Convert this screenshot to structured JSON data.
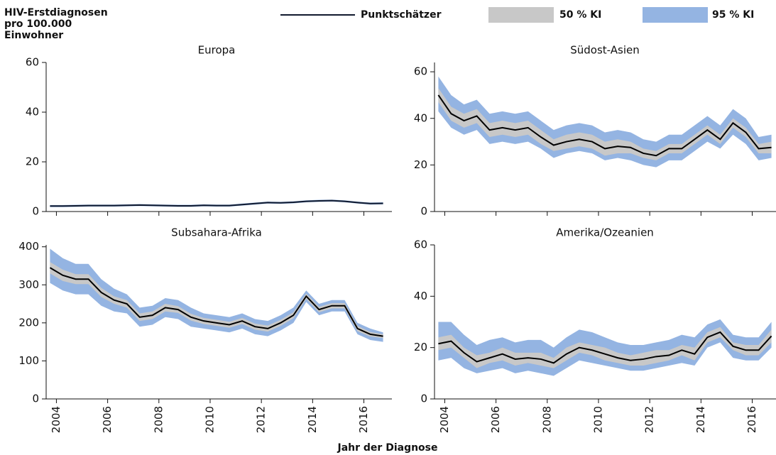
{
  "y_axis_label": [
    "HIV-Erstdiagnosen",
    "pro 100.000",
    "Einwohner"
  ],
  "x_axis_label": "Jahr der Diagnose",
  "chart_data": [
    {
      "type": "line",
      "title": "Europa",
      "x": [
        2003.75,
        2004.25,
        2004.75,
        2005.25,
        2005.75,
        2006.25,
        2006.75,
        2007.25,
        2007.75,
        2008.25,
        2008.75,
        2009.25,
        2009.75,
        2010.25,
        2010.75,
        2011.25,
        2011.75,
        2012.25,
        2012.75,
        2013.25,
        2013.75,
        2014.25,
        2014.75,
        2015.25,
        2015.75,
        2016.25,
        2016.75
      ],
      "xlim": [
        2003.6,
        2016.9
      ],
      "xticks": [
        2004,
        2006,
        2008,
        2010,
        2012,
        2014,
        2016
      ],
      "ylim": [
        0,
        60
      ],
      "yticks": [
        0,
        20,
        40,
        60
      ],
      "series": [
        {
          "name": "Punktschätzer",
          "color": "#111a2e",
          "values": [
            2.2,
            2.2,
            2.3,
            2.4,
            2.4,
            2.4,
            2.5,
            2.6,
            2.5,
            2.4,
            2.3,
            2.3,
            2.5,
            2.4,
            2.4,
            2.8,
            3.2,
            3.6,
            3.5,
            3.7,
            4.1,
            4.3,
            4.4,
            4.1,
            3.6,
            3.2,
            3.3
          ]
        },
        {
          "name": "50 % KI",
          "color": "#c8c8c8",
          "lower": [
            2.0,
            2.0,
            2.1,
            2.2,
            2.2,
            2.2,
            2.3,
            2.4,
            2.3,
            2.2,
            2.1,
            2.1,
            2.3,
            2.2,
            2.2,
            2.6,
            3.0,
            3.4,
            3.3,
            3.5,
            3.9,
            4.1,
            4.2,
            3.9,
            3.4,
            3.0,
            3.1
          ],
          "upper": [
            2.4,
            2.4,
            2.5,
            2.6,
            2.6,
            2.6,
            2.7,
            2.8,
            2.7,
            2.6,
            2.5,
            2.5,
            2.7,
            2.6,
            2.6,
            3.0,
            3.4,
            3.8,
            3.7,
            3.9,
            4.3,
            4.5,
            4.6,
            4.3,
            3.8,
            3.4,
            3.5
          ]
        },
        {
          "name": "95 % KI",
          "color": "#94b4e2",
          "lower": [
            1.8,
            1.8,
            1.9,
            2.0,
            2.0,
            2.0,
            2.1,
            2.2,
            2.1,
            2.0,
            1.9,
            1.9,
            2.1,
            2.0,
            2.0,
            2.4,
            2.8,
            3.2,
            3.1,
            3.3,
            3.7,
            3.9,
            4.0,
            3.7,
            3.2,
            2.8,
            2.9
          ],
          "upper": [
            2.6,
            2.6,
            2.7,
            2.8,
            2.8,
            2.8,
            2.9,
            3.0,
            2.9,
            2.8,
            2.7,
            2.7,
            2.9,
            2.8,
            2.8,
            3.2,
            3.6,
            4.0,
            3.9,
            4.1,
            4.5,
            4.7,
            4.8,
            4.5,
            4.0,
            3.6,
            3.7
          ]
        }
      ]
    },
    {
      "type": "line",
      "title": "Südost-Asien",
      "x": [
        2003.75,
        2004.25,
        2004.75,
        2005.25,
        2005.75,
        2006.25,
        2006.75,
        2007.25,
        2007.75,
        2008.25,
        2008.75,
        2009.25,
        2009.75,
        2010.25,
        2010.75,
        2011.25,
        2011.75,
        2012.25,
        2012.75,
        2013.25,
        2013.75,
        2014.25,
        2014.75,
        2015.25,
        2015.75,
        2016.25,
        2016.75
      ],
      "xlim": [
        2003.6,
        2016.9
      ],
      "xticks": [
        2004,
        2006,
        2008,
        2010,
        2012,
        2014,
        2016
      ],
      "ylim": [
        0,
        64
      ],
      "yticks": [
        0,
        20,
        40,
        60
      ],
      "series": [
        {
          "name": "Punktschätzer",
          "color": "#000000",
          "values": [
            50,
            42,
            39,
            41,
            35,
            36,
            35,
            36,
            32,
            28.5,
            30,
            31,
            30,
            27,
            28,
            27.5,
            25,
            24,
            27,
            27,
            31,
            35,
            31,
            38,
            34,
            27,
            27.5
          ]
        },
        {
          "name": "50 % KI",
          "color": "#c8c8c8",
          "lower": [
            47,
            39,
            36,
            38,
            32,
            33,
            32,
            33,
            29,
            26,
            27,
            28,
            27,
            24,
            25,
            25,
            23,
            22,
            25,
            25,
            29,
            33,
            29,
            36,
            32,
            25,
            25
          ],
          "upper": [
            53,
            45,
            42,
            44,
            38,
            39,
            38,
            39,
            35,
            31,
            33,
            34,
            33,
            30,
            31,
            30,
            27,
            26,
            29,
            29,
            33,
            37,
            33,
            40,
            36,
            29,
            30
          ]
        },
        {
          "name": "95 % KI",
          "color": "#94b4e2",
          "lower": [
            43,
            36,
            33,
            35,
            29,
            30,
            29,
            30,
            27,
            23,
            25,
            26,
            25,
            22,
            23,
            22,
            20,
            19,
            22,
            22,
            26,
            30,
            27,
            33,
            29,
            22,
            23
          ],
          "upper": [
            58,
            50,
            46,
            48,
            42,
            43,
            42,
            43,
            39,
            35,
            37,
            38,
            37,
            34,
            35,
            34,
            31,
            30,
            33,
            33,
            37,
            41,
            37,
            44,
            40,
            32,
            33
          ]
        }
      ]
    },
    {
      "type": "line",
      "title": "Subsahara-Afrika",
      "x": [
        2003.75,
        2004.25,
        2004.75,
        2005.25,
        2005.75,
        2006.25,
        2006.75,
        2007.25,
        2007.75,
        2008.25,
        2008.75,
        2009.25,
        2009.75,
        2010.25,
        2010.75,
        2011.25,
        2011.75,
        2012.25,
        2012.75,
        2013.25,
        2013.75,
        2014.25,
        2014.75,
        2015.25,
        2015.75,
        2016.25,
        2016.75
      ],
      "xlim": [
        2003.6,
        2016.9
      ],
      "xticks": [
        2004,
        2006,
        2008,
        2010,
        2012,
        2014,
        2016
      ],
      "ylim": [
        0,
        405
      ],
      "yticks": [
        0,
        100,
        200,
        300,
        400
      ],
      "series": [
        {
          "name": "Punktschätzer",
          "color": "#000000",
          "values": [
            345,
            325,
            315,
            315,
            280,
            260,
            250,
            215,
            220,
            240,
            235,
            215,
            205,
            200,
            195,
            205,
            190,
            185,
            200,
            220,
            270,
            235,
            245,
            245,
            185,
            170,
            165
          ]
        },
        {
          "name": "50 % KI",
          "color": "#c8c8c8",
          "lower": [
            330,
            310,
            302,
            302,
            268,
            250,
            240,
            205,
            210,
            230,
            226,
            206,
            197,
            192,
            187,
            197,
            182,
            177,
            192,
            212,
            263,
            228,
            238,
            238,
            178,
            164,
            160
          ],
          "upper": [
            360,
            340,
            328,
            328,
            292,
            270,
            260,
            225,
            230,
            250,
            244,
            224,
            213,
            208,
            203,
            213,
            198,
            193,
            208,
            228,
            277,
            242,
            252,
            252,
            192,
            176,
            170
          ]
        },
        {
          "name": "95 % KI",
          "color": "#94b4e2",
          "lower": [
            305,
            285,
            275,
            275,
            245,
            230,
            225,
            190,
            195,
            215,
            210,
            190,
            185,
            180,
            175,
            185,
            170,
            165,
            180,
            200,
            255,
            220,
            230,
            230,
            170,
            155,
            150
          ],
          "upper": [
            395,
            370,
            355,
            355,
            315,
            290,
            275,
            240,
            245,
            265,
            260,
            240,
            225,
            220,
            215,
            225,
            210,
            205,
            220,
            240,
            285,
            250,
            260,
            260,
            200,
            185,
            175
          ]
        }
      ]
    },
    {
      "type": "line",
      "title": "Amerika/Ozeanien",
      "x": [
        2003.75,
        2004.25,
        2004.75,
        2005.25,
        2005.75,
        2006.25,
        2006.75,
        2007.25,
        2007.75,
        2008.25,
        2008.75,
        2009.25,
        2009.75,
        2010.25,
        2010.75,
        2011.25,
        2011.75,
        2012.25,
        2012.75,
        2013.25,
        2013.75,
        2014.25,
        2014.75,
        2015.25,
        2015.75,
        2016.25,
        2016.75
      ],
      "xlim": [
        2003.6,
        2016.9
      ],
      "xticks": [
        2004,
        2006,
        2008,
        2010,
        2012,
        2014,
        2016
      ],
      "ylim": [
        0,
        60
      ],
      "yticks": [
        0,
        20,
        40,
        60
      ],
      "series": [
        {
          "name": "Punktschätzer",
          "color": "#000000",
          "values": [
            21.5,
            22.5,
            18,
            14.5,
            16,
            17.5,
            15.5,
            16,
            15.5,
            14,
            17.5,
            20,
            19,
            17.5,
            16,
            15,
            15.5,
            16.5,
            17,
            19,
            17.5,
            24,
            26,
            20.5,
            19,
            19,
            24.5
          ]
        },
        {
          "name": "50 % KI",
          "color": "#c8c8c8",
          "lower": [
            19,
            20,
            16,
            12,
            14,
            15,
            13,
            14,
            13,
            12,
            15,
            18,
            17,
            15,
            14,
            13,
            13,
            14,
            15,
            17,
            15,
            22,
            24,
            19,
            17,
            17,
            22
          ],
          "upper": [
            24,
            25,
            20,
            17,
            18,
            20,
            18,
            18,
            18,
            16,
            20,
            22,
            21,
            20,
            18,
            17,
            18,
            19,
            19,
            21,
            20,
            26,
            28,
            22,
            21,
            21,
            27
          ]
        },
        {
          "name": "95 % KI",
          "color": "#94b4e2",
          "lower": [
            15,
            16,
            12,
            10,
            11,
            12,
            10,
            11,
            10,
            9,
            12,
            15,
            14,
            13,
            12,
            11,
            11,
            12,
            13,
            14,
            13,
            20,
            22,
            16,
            15,
            15,
            20
          ],
          "upper": [
            30,
            30,
            25,
            21,
            23,
            24,
            22,
            23,
            23,
            20,
            24,
            27,
            26,
            24,
            22,
            21,
            21,
            22,
            23,
            25,
            24,
            29,
            31,
            25,
            24,
            24,
            30
          ]
        }
      ]
    }
  ]
}
